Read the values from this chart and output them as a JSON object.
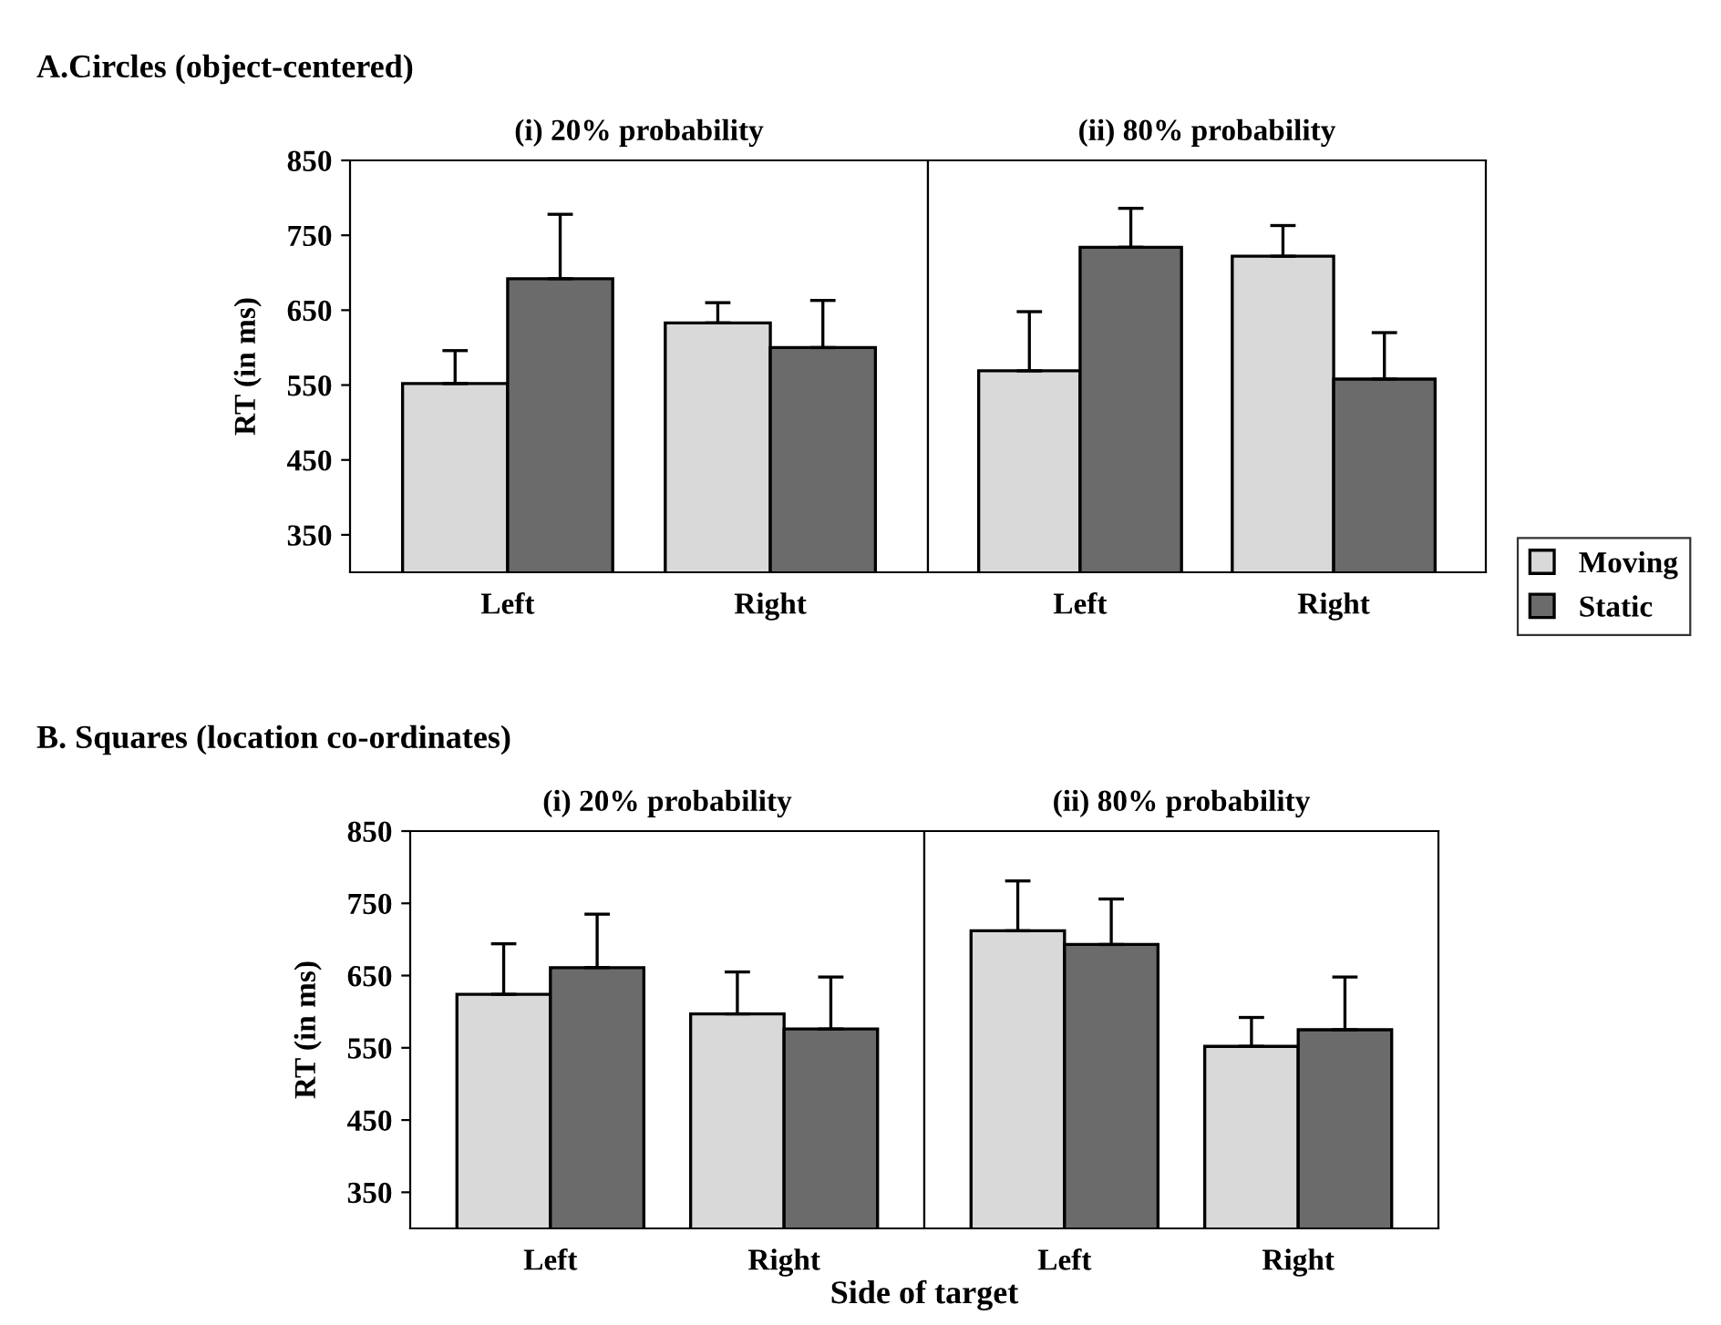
{
  "chart_data": [
    {
      "type": "bar",
      "title": "A.Circles (object-centered)",
      "subtitle": "(i) 20% probability",
      "ylabel": "RT (in ms)",
      "categories": [
        "Left",
        "Right"
      ],
      "ylim": [
        300,
        850
      ],
      "yticks": [
        350,
        450,
        550,
        650,
        750,
        850
      ],
      "legend": false,
      "series": [
        {
          "color": "#d9d9d9",
          "values": [
            552,
            633
          ],
          "errors": [
            [
              552,
              596
            ],
            [
              633,
              660
            ]
          ]
        },
        {
          "color": "#6b6b6b",
          "values": [
            692,
            600
          ],
          "errors": [
            [
              692,
              778
            ],
            [
              600,
              663
            ]
          ]
        }
      ]
    },
    {
      "type": "bar",
      "subtitle": "(ii) 80% probability",
      "categories": [
        "Left",
        "Right"
      ],
      "ylim": [
        300,
        850
      ],
      "yticks": [
        350,
        450,
        550,
        650,
        750,
        850
      ],
      "tick_labels": "x",
      "legend": "right",
      "series": [
        {
          "name": "Moving",
          "color": "#d9d9d9",
          "values": [
            569,
            722
          ],
          "errors": [
            [
              569,
              648
            ],
            [
              722,
              763
            ]
          ]
        },
        {
          "name": "Static",
          "color": "#6b6b6b",
          "values": [
            734,
            558
          ],
          "errors": [
            [
              734,
              786
            ],
            [
              558,
              620
            ]
          ]
        }
      ]
    },
    {
      "type": "bar",
      "title": "B. Squares (location co-ordinates)",
      "subtitle": "(i) 20% probability",
      "ylabel": "RT (in ms)",
      "xlabel": "Side of target",
      "categories": [
        "Left",
        "Right"
      ],
      "ylim": [
        300,
        850
      ],
      "yticks": [
        350,
        450,
        550,
        650,
        750,
        850
      ],
      "legend": false,
      "series": [
        {
          "color": "#d9d9d9",
          "values": [
            624,
            597
          ],
          "errors": [
            [
              624,
              694
            ],
            [
              597,
              655
            ]
          ]
        },
        {
          "color": "#6b6b6b",
          "values": [
            661,
            576
          ],
          "errors": [
            [
              661,
              735
            ],
            [
              576,
              648
            ]
          ]
        }
      ]
    },
    {
      "type": "bar",
      "subtitle": "(ii) 80% probability",
      "categories": [
        "Left",
        "Right"
      ],
      "ylim": [
        300,
        850
      ],
      "yticks": [
        350,
        450,
        550,
        650,
        750,
        850
      ],
      "tick_labels": "x",
      "legend": false,
      "series": [
        {
          "color": "#d9d9d9",
          "values": [
            712,
            552
          ],
          "errors": [
            [
              712,
              781
            ],
            [
              552,
              592
            ]
          ]
        },
        {
          "color": "#6b6b6b",
          "values": [
            693,
            575
          ],
          "errors": [
            [
              693,
              756
            ],
            [
              575,
              648
            ]
          ]
        }
      ]
    }
  ]
}
